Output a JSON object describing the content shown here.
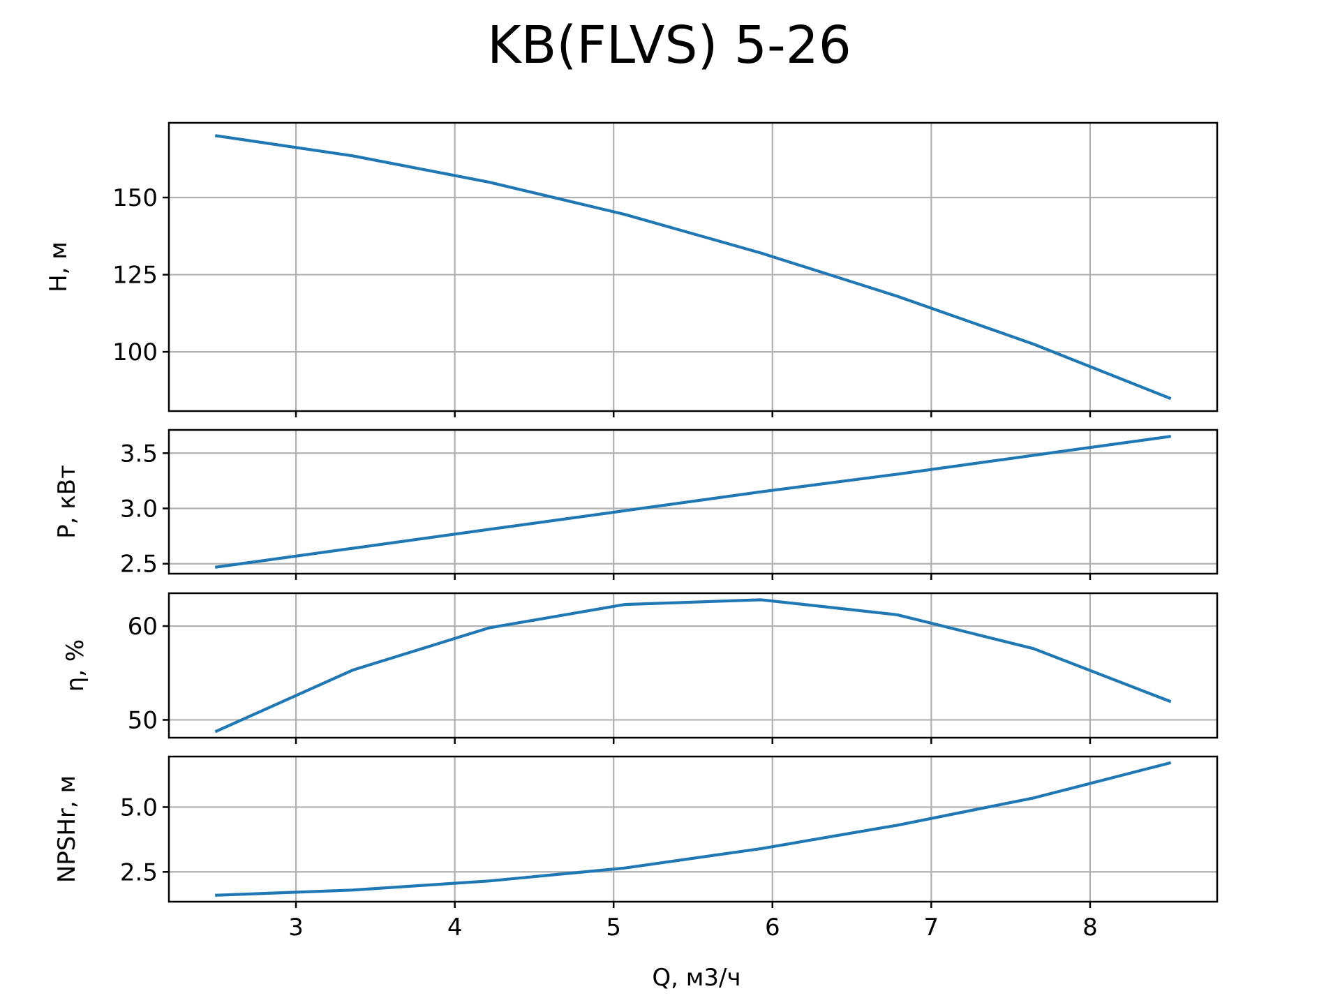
{
  "chart_data": {
    "type": "line",
    "title": "KB(FLVS) 5-26",
    "xlabel": "Q, м3/ч",
    "x": [
      2.5,
      3.357,
      4.214,
      5.071,
      5.929,
      6.786,
      7.643,
      8.5
    ],
    "xlim": [
      2.2,
      8.8
    ],
    "xticks": [
      3,
      4,
      5,
      6,
      7,
      8
    ],
    "grid": true,
    "line_color": "#1f77b4",
    "panels": [
      {
        "ylabel": "H, м",
        "values": [
          170.0,
          163.5,
          155.0,
          144.5,
          132.0,
          118.0,
          102.5,
          85.0
        ],
        "ylim": [
          80.8,
          174.2
        ],
        "yticks": [
          100,
          125,
          150
        ],
        "ytick_labels": [
          "100",
          "125",
          "150"
        ]
      },
      {
        "ylabel": "P, кВт",
        "values": [
          2.47,
          2.64,
          2.81,
          2.98,
          3.15,
          3.31,
          3.48,
          3.65
        ],
        "ylim": [
          2.41,
          3.71
        ],
        "yticks": [
          2.5,
          3.0,
          3.5
        ],
        "ytick_labels": [
          "2.5",
          "3.0",
          "3.5"
        ]
      },
      {
        "ylabel": "η, %",
        "values": [
          48.8,
          55.3,
          59.8,
          62.3,
          62.8,
          61.2,
          57.6,
          52.0
        ],
        "ylim": [
          48.1,
          63.5
        ],
        "yticks": [
          50,
          60
        ],
        "ytick_labels": [
          "50",
          "60"
        ]
      },
      {
        "ylabel": "NPSHr, м",
        "values": [
          1.6,
          1.8,
          2.15,
          2.65,
          3.4,
          4.3,
          5.35,
          6.7
        ],
        "ylim": [
          1.35,
          6.95
        ],
        "yticks": [
          2.5,
          5.0
        ],
        "ytick_labels": [
          "2.5",
          "5.0"
        ]
      }
    ]
  }
}
